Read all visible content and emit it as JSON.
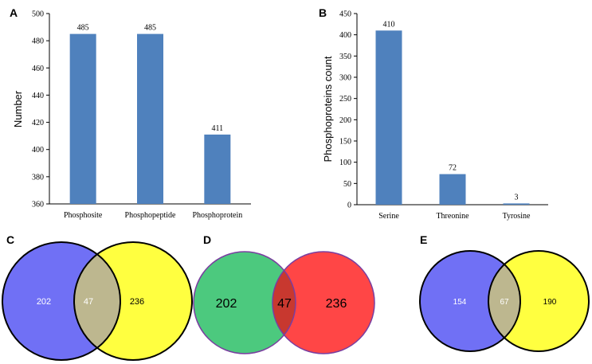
{
  "chart_data": [
    {
      "type": "bar",
      "panel": "A",
      "categories": [
        "Phosphosite",
        "Phosphopeptide",
        "Phosphoprotein"
      ],
      "values": [
        485,
        485,
        411
      ],
      "data_labels": [
        "485",
        "485",
        "411"
      ],
      "ylabel": "Number",
      "ylim": [
        360,
        500
      ],
      "yticks": [
        360,
        380,
        400,
        420,
        440,
        460,
        480,
        500
      ],
      "bar_color": "#4f81bd",
      "grid": false
    },
    {
      "type": "bar",
      "panel": "B",
      "categories": [
        "Serine",
        "Threonine",
        "Tyrosine"
      ],
      "values": [
        410,
        72,
        3
      ],
      "data_labels": [
        "410",
        "72",
        "3"
      ],
      "ylabel": "Phosphoproteins count",
      "ylim": [
        0,
        450
      ],
      "yticks": [
        0,
        50,
        100,
        150,
        200,
        250,
        300,
        350,
        400,
        450
      ],
      "bar_color": "#4f81bd",
      "grid": false
    },
    {
      "type": "venn",
      "panel": "C",
      "sets": [
        {
          "only": 202,
          "color": "#7070f5"
        },
        {
          "only": 236,
          "color": "#ffff40"
        }
      ],
      "intersection": 47,
      "intersection_color": "#bdb78f",
      "labels": [
        "202",
        "47",
        "236"
      ]
    },
    {
      "type": "venn",
      "panel": "D",
      "sets": [
        {
          "only": 202,
          "color": "#4cc97e"
        },
        {
          "only": 236,
          "color": "#ff4646"
        }
      ],
      "intersection": 47,
      "intersection_color": "#c8382f",
      "labels": [
        "202",
        "47",
        "236"
      ]
    },
    {
      "type": "venn",
      "panel": "E",
      "sets": [
        {
          "only": 154,
          "color": "#7070f5"
        },
        {
          "only": 190,
          "color": "#ffff40"
        }
      ],
      "intersection": 67,
      "intersection_color": "#bdb78f",
      "labels": [
        "154",
        "67",
        "190"
      ]
    }
  ]
}
